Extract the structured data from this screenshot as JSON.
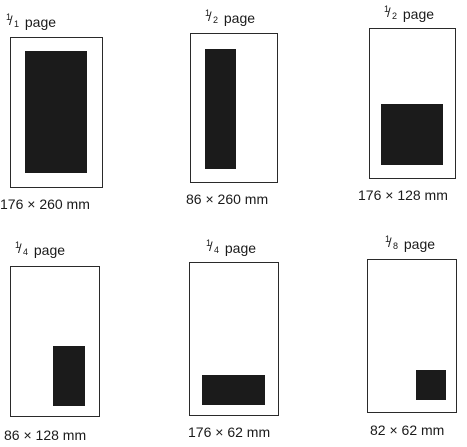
{
  "ads": [
    {
      "numerator": "1",
      "denominator": "1",
      "title_suffix": " page",
      "dimensions": "176 × 260 mm"
    },
    {
      "numerator": "1",
      "denominator": "2",
      "title_suffix": " page",
      "dimensions": "86 × 260 mm"
    },
    {
      "numerator": "1",
      "denominator": "2",
      "title_suffix": " page",
      "dimensions": "176 × 128 mm"
    },
    {
      "numerator": "1",
      "denominator": "4",
      "title_suffix": " page",
      "dimensions": "86 × 128 mm"
    },
    {
      "numerator": "1",
      "denominator": "4",
      "title_suffix": " page",
      "dimensions": "176 × 62 mm"
    },
    {
      "numerator": "1",
      "denominator": "8",
      "title_suffix": " page",
      "dimensions": "82 × 62 mm"
    }
  ]
}
